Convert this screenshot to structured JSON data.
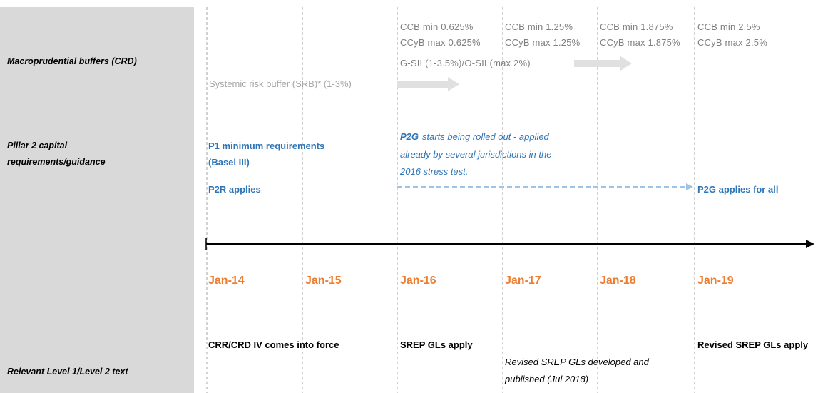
{
  "rows": [
    "Macroprudential buffers (CRD)",
    [
      "Pillar 2 capital",
      "requirements/guidance"
    ],
    "Relevant Level 1/Level 2 text"
  ],
  "buffers": {
    "ccb": [
      "CCB min 0.625%",
      "CCB min 1.25%",
      "CCB min 1.875%",
      "CCB min 2.5%"
    ],
    "ccyb": [
      "CCyB max 0.625%",
      "CCyB max 1.25%",
      "CCyB max 1.875%",
      "CCyB max 2.5%"
    ],
    "gsii": "G-SII (1-3.5%)/O-SII (max 2%)",
    "srb": "Systemic risk buffer (SRB)* (1-3%)"
  },
  "pillar2": {
    "p1": [
      "P1 minimum requirements",
      "(Basel III)"
    ],
    "p2r": "P2R applies",
    "p2g_lead": "P2G",
    "p2g_text": [
      "starts being rolled out - applied",
      "already by several jurisdictions in the",
      "2016 stress test."
    ],
    "p2g_all": "P2G applies for all"
  },
  "timeline": {
    "dates": [
      "Jan-14",
      "Jan-15",
      "Jan-16",
      "Jan-17",
      "Jan-18",
      "Jan-19"
    ]
  },
  "legal": {
    "crr": "CRR/CRD IV comes into force",
    "srep": "SREP GLs apply",
    "revised_apply": "Revised SREP GLs apply",
    "revised_developed": [
      "Revised SREP GLs developed and",
      "published (Jul 2018)"
    ]
  }
}
